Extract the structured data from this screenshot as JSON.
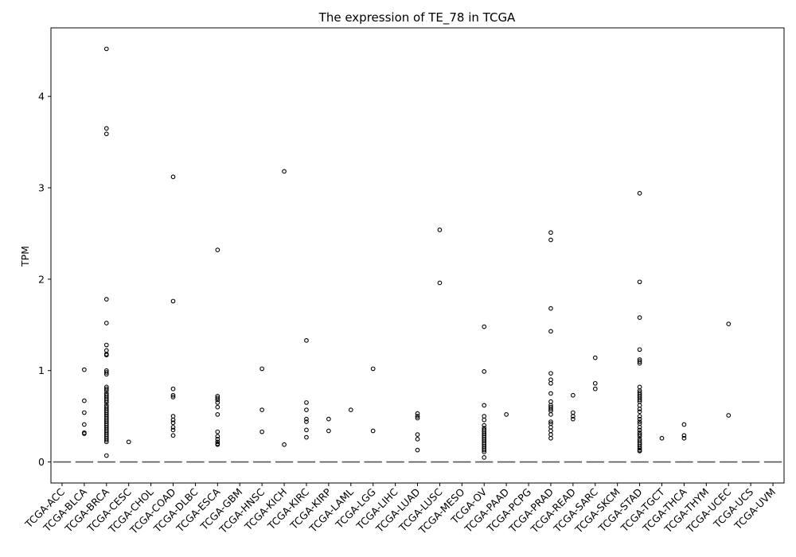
{
  "chart_data": {
    "type": "boxplot",
    "title": "The expression of TE_78 in TCGA",
    "xlabel": "",
    "ylabel": "TPM",
    "ylim": [
      -0.23,
      4.75
    ],
    "yticks": [
      0,
      1,
      2,
      3,
      4
    ],
    "grid": false,
    "median_line_color": "#555555",
    "box_color": "#000000",
    "categories": [
      "TCGA-ACC",
      "TCGA-BLCA",
      "TCGA-BRCA",
      "TCGA-CESC",
      "TCGA-CHOL",
      "TCGA-COAD",
      "TCGA-DLBC",
      "TCGA-ESCA",
      "TCGA-GBM",
      "TCGA-HNSC",
      "TCGA-KICH",
      "TCGA-KIRC",
      "TCGA-KIRP",
      "TCGA-LAML",
      "TCGA-LGG",
      "TCGA-LIHC",
      "TCGA-LUAD",
      "TCGA-LUSC",
      "TCGA-MESO",
      "TCGA-OV",
      "TCGA-PAAD",
      "TCGA-PCPG",
      "TCGA-PRAD",
      "TCGA-READ",
      "TCGA-SARC",
      "TCGA-SKCM",
      "TCGA-STAD",
      "TCGA-TGCT",
      "TCGA-THCA",
      "TCGA-THYM",
      "TCGA-UCEC",
      "TCGA-UCS",
      "TCGA-UVM"
    ],
    "medians": [
      0,
      0,
      0,
      0,
      0,
      0,
      0,
      0,
      0,
      0,
      0,
      0,
      0,
      0,
      0,
      0,
      0,
      0,
      0,
      0,
      0,
      0,
      0,
      0,
      0,
      0,
      0,
      0,
      0,
      0,
      0,
      0,
      0
    ],
    "outliers": [
      [],
      [
        1.01,
        0.67,
        0.54,
        0.41,
        0.32,
        0.31
      ],
      [
        4.52,
        3.65,
        3.59,
        1.78,
        1.52,
        1.28,
        1.22,
        1.18,
        1.17,
        1.0,
        0.98,
        0.96,
        0.82,
        0.8,
        0.78,
        0.75,
        0.73,
        0.71,
        0.69,
        0.67,
        0.65,
        0.62,
        0.6,
        0.58,
        0.56,
        0.54,
        0.52,
        0.5,
        0.48,
        0.46,
        0.44,
        0.42,
        0.4,
        0.38,
        0.36,
        0.34,
        0.32,
        0.3,
        0.28,
        0.26,
        0.24,
        0.22,
        0.07
      ],
      [
        0.22
      ],
      [],
      [
        3.12,
        1.76,
        0.8,
        0.73,
        0.71,
        0.5,
        0.46,
        0.43,
        0.38,
        0.35,
        0.29
      ],
      [],
      [
        2.32,
        0.72,
        0.7,
        0.68,
        0.65,
        0.6,
        0.52,
        0.33,
        0.28,
        0.25,
        0.22,
        0.2,
        0.19
      ],
      [],
      [
        1.02,
        0.57,
        0.33
      ],
      [
        3.18,
        0.19
      ],
      [
        1.33,
        0.65,
        0.57,
        0.47,
        0.44,
        0.35,
        0.27
      ],
      [
        0.47,
        0.34
      ],
      [
        0.57
      ],
      [
        1.02,
        0.34
      ],
      [],
      [
        0.53,
        0.5,
        0.48,
        0.3,
        0.25,
        0.13
      ],
      [
        2.54,
        1.96
      ],
      [],
      [
        1.48,
        0.99,
        0.62,
        0.5,
        0.46,
        0.4,
        0.37,
        0.35,
        0.33,
        0.31,
        0.29,
        0.27,
        0.25,
        0.23,
        0.21,
        0.19,
        0.17,
        0.15,
        0.13,
        0.11,
        0.05
      ],
      [
        0.52
      ],
      [],
      [
        2.51,
        2.43,
        1.68,
        1.43,
        0.97,
        0.9,
        0.86,
        0.75,
        0.66,
        0.62,
        0.6,
        0.58,
        0.56,
        0.52,
        0.44,
        0.42,
        0.38,
        0.34,
        0.3,
        0.26
      ],
      [
        0.73,
        0.54,
        0.5,
        0.47
      ],
      [
        1.14,
        0.86,
        0.8
      ],
      [],
      [
        2.94,
        1.97,
        1.58,
        1.23,
        1.12,
        1.1,
        1.08,
        0.82,
        0.78,
        0.76,
        0.74,
        0.72,
        0.7,
        0.68,
        0.66,
        0.62,
        0.58,
        0.55,
        0.5,
        0.47,
        0.44,
        0.42,
        0.38,
        0.35,
        0.32,
        0.3,
        0.28,
        0.25,
        0.23,
        0.21,
        0.19,
        0.17,
        0.15,
        0.13,
        0.12
      ],
      [
        0.26
      ],
      [
        0.41,
        0.29,
        0.26
      ],
      [],
      [
        1.51,
        0.51
      ],
      [],
      []
    ]
  }
}
